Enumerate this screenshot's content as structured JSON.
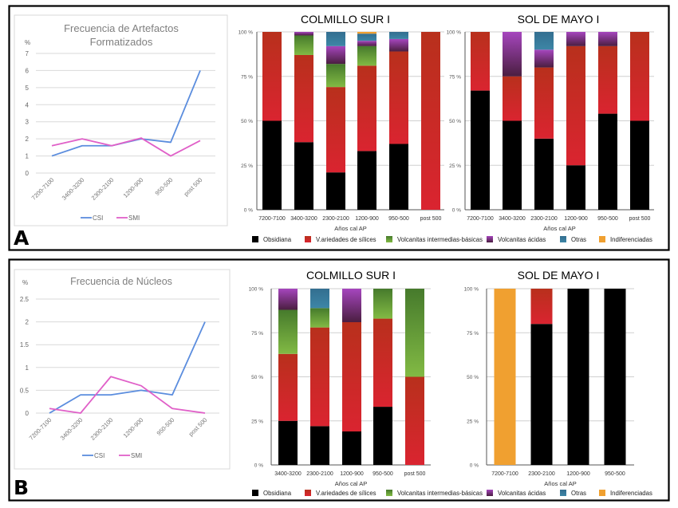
{
  "colors": {
    "Obsidiana": "#000000",
    "Variedades de silices": "#C8281E",
    "Volcanitas intermedias-basicas": "#5E9434",
    "Volcanitas acidas": "#7A2E7A",
    "Otras": "#3A7A9A",
    "Indiferenciadas": "#F0A030",
    "csi_line": "#5B8DDE",
    "smi_line": "#E060C8"
  },
  "panels": [
    {
      "label": "A"
    },
    {
      "label": "B"
    }
  ],
  "legend": {
    "items": [
      {
        "key": "Obsidiana",
        "label": "Obsidiana"
      },
      {
        "key": "Variedades de silices",
        "label": "V.ariedades de sílices"
      },
      {
        "key": "Volcanitas intermedias-basicas",
        "label": "Volcanitas intermedias-básicas"
      },
      {
        "key": "Volcanitas acidas",
        "label": "Volcanitas ácidas"
      },
      {
        "key": "Otras",
        "label": "Otras"
      },
      {
        "key": "Indiferenciadas",
        "label": "Indiferenciadas"
      }
    ]
  },
  "chart_data": [
    {
      "id": "A-line",
      "type": "line",
      "title": "Frecuencia de Artefactos Formatizados",
      "ylabel": "%",
      "xlabel": "",
      "ylim": [
        0,
        7
      ],
      "yticks": [
        0,
        1,
        2,
        3,
        4,
        5,
        6,
        7
      ],
      "grid": true,
      "legend_position": "bottom",
      "categories": [
        "7200-7100",
        "3400-3200",
        "2300-2100",
        "1200-900",
        "950-500",
        "post 500"
      ],
      "series": [
        {
          "name": "CSI",
          "values": [
            1.0,
            1.6,
            1.6,
            2.0,
            1.8,
            6.0
          ]
        },
        {
          "name": "SMI",
          "values": [
            1.6,
            2.0,
            1.6,
            2.05,
            1.0,
            1.9
          ]
        }
      ]
    },
    {
      "id": "A-csi",
      "type": "bar",
      "stacked": true,
      "title": "COLMILLO SUR I",
      "xlabel": "Años cal AP",
      "ylabel": "",
      "ylim": [
        0,
        100
      ],
      "yticks": [
        "0 %",
        "25 %",
        "50 %",
        "75 %",
        "100 %"
      ],
      "grid": true,
      "categories": [
        "7200-7100",
        "3400-3200",
        "2300-2100",
        "1200-900",
        "950-500",
        "post 500"
      ],
      "series": [
        {
          "name": "Obsidiana",
          "values": [
            50,
            38,
            21,
            33,
            37,
            0
          ]
        },
        {
          "name": "Variedades de silices",
          "values": [
            50,
            49,
            48,
            48,
            52,
            100
          ]
        },
        {
          "name": "Volcanitas intermedias-basicas",
          "values": [
            0,
            11,
            13,
            11,
            0,
            0
          ]
        },
        {
          "name": "Volcanitas acidas",
          "values": [
            0,
            2,
            10,
            3,
            7,
            0
          ]
        },
        {
          "name": "Otras",
          "values": [
            0,
            0,
            8,
            4,
            4,
            0
          ]
        },
        {
          "name": "Indiferenciadas",
          "values": [
            0,
            0,
            0,
            1,
            0,
            0
          ]
        }
      ]
    },
    {
      "id": "A-smi",
      "type": "bar",
      "stacked": true,
      "title": "SOL DE MAYO I",
      "xlabel": "Años cal AP",
      "ylabel": "",
      "ylim": [
        0,
        100
      ],
      "yticks": [
        "0 %",
        "25 %",
        "50 %",
        "75 %",
        "100 %"
      ],
      "grid": true,
      "categories": [
        "7200-7100",
        "3400-3200",
        "2300-2100",
        "1200-900",
        "950-500",
        "post 500"
      ],
      "series": [
        {
          "name": "Obsidiana",
          "values": [
            67,
            50,
            40,
            25,
            54,
            50
          ]
        },
        {
          "name": "Variedades de silices",
          "values": [
            33,
            25,
            40,
            67,
            38,
            50
          ]
        },
        {
          "name": "Volcanitas intermedias-basicas",
          "values": [
            0,
            0,
            0,
            0,
            0,
            0
          ]
        },
        {
          "name": "Volcanitas acidas",
          "values": [
            0,
            25,
            10,
            8,
            8,
            0
          ]
        },
        {
          "name": "Otras",
          "values": [
            0,
            0,
            10,
            0,
            0,
            0
          ]
        },
        {
          "name": "Indiferenciadas",
          "values": [
            0,
            0,
            0,
            0,
            0,
            0
          ]
        }
      ]
    },
    {
      "id": "B-line",
      "type": "line",
      "title": "Frecuencia de Núcleos",
      "ylabel": "%",
      "xlabel": "",
      "ylim": [
        0,
        2.5
      ],
      "yticks": [
        0,
        0.5,
        1,
        1.5,
        2,
        2.5
      ],
      "grid": true,
      "legend_position": "bottom",
      "categories": [
        "7200-7100",
        "3400-3200",
        "2300-2100",
        "1200-900",
        "950-500",
        "post 500"
      ],
      "series": [
        {
          "name": "CSI",
          "values": [
            0,
            0.4,
            0.4,
            0.5,
            0.4,
            2.0
          ]
        },
        {
          "name": "SMI",
          "values": [
            0.1,
            0,
            0.8,
            0.6,
            0.1,
            0
          ]
        }
      ]
    },
    {
      "id": "B-csi",
      "type": "bar",
      "stacked": true,
      "title": "COLMILLO SUR I",
      "xlabel": "Años cal AP",
      "ylabel": "",
      "ylim": [
        0,
        100
      ],
      "yticks": [
        "0 %",
        "25 %",
        "50 %",
        "75 %",
        "100 %"
      ],
      "grid": true,
      "categories": [
        "3400-3200",
        "2300-2100",
        "1200-900",
        "950-500",
        "post 500"
      ],
      "series": [
        {
          "name": "Obsidiana",
          "values": [
            25,
            22,
            19,
            33,
            0
          ]
        },
        {
          "name": "Variedades de silices",
          "values": [
            38,
            56,
            62,
            50,
            50
          ]
        },
        {
          "name": "Volcanitas intermedias-basicas",
          "values": [
            25,
            11,
            0,
            17,
            50
          ]
        },
        {
          "name": "Volcanitas acidas",
          "values": [
            12,
            0,
            19,
            0,
            0
          ]
        },
        {
          "name": "Otras",
          "values": [
            0,
            11,
            0,
            0,
            0
          ]
        },
        {
          "name": "Indiferenciadas",
          "values": [
            0,
            0,
            0,
            0,
            0
          ]
        }
      ]
    },
    {
      "id": "B-smi",
      "type": "bar",
      "stacked": true,
      "title": "SOL DE MAYO I",
      "xlabel": "Años cal AP",
      "ylabel": "",
      "ylim": [
        0,
        100
      ],
      "yticks": [
        "0 %",
        "25 %",
        "50 %",
        "75 %",
        "100 %"
      ],
      "grid": true,
      "categories": [
        "7200-7100",
        "2300-2100",
        "1200-900",
        "950-500"
      ],
      "series": [
        {
          "name": "Obsidiana",
          "values": [
            0,
            80,
            100,
            100
          ]
        },
        {
          "name": "Variedades de silices",
          "values": [
            0,
            20,
            0,
            0
          ]
        },
        {
          "name": "Volcanitas intermedias-basicas",
          "values": [
            0,
            0,
            0,
            0
          ]
        },
        {
          "name": "Volcanitas acidas",
          "values": [
            0,
            0,
            0,
            0
          ]
        },
        {
          "name": "Otras",
          "values": [
            0,
            0,
            0,
            0
          ]
        },
        {
          "name": "Indiferenciadas",
          "values": [
            100,
            0,
            0,
            0
          ]
        }
      ]
    }
  ]
}
